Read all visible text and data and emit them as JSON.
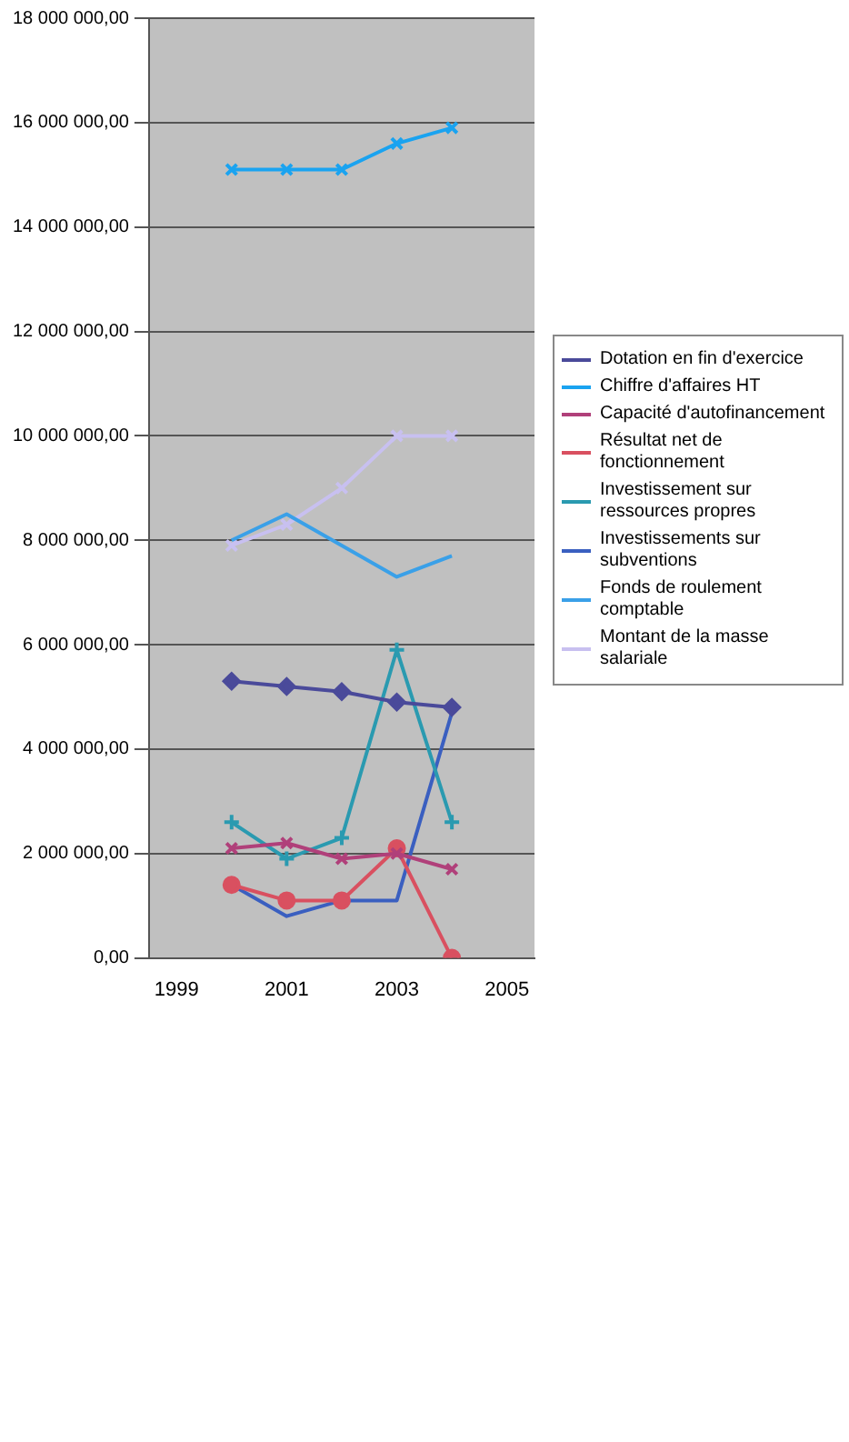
{
  "chart_data": {
    "type": "line",
    "categories": [
      "1999",
      null,
      "2001",
      null,
      "2003",
      null,
      "2005"
    ],
    "ylim": [
      0,
      18000000
    ],
    "yticks": [
      {
        "value": 0,
        "label": "0,00"
      },
      {
        "value": 2000000,
        "label": "2 000 000,00"
      },
      {
        "value": 4000000,
        "label": "4 000 000,00"
      },
      {
        "value": 6000000,
        "label": "6 000 000,00"
      },
      {
        "value": 8000000,
        "label": "8 000 000,00"
      },
      {
        "value": 10000000,
        "label": "10 000 000,00"
      },
      {
        "value": 12000000,
        "label": "12 000 000,00"
      },
      {
        "value": 14000000,
        "label": "14 000 000,00"
      },
      {
        "value": 16000000,
        "label": "16 000 000,00"
      },
      {
        "value": 18000000,
        "label": "18 000 000,00"
      }
    ],
    "grid": "y",
    "legend": "right",
    "series": [
      {
        "name": "Dotation en fin d'exercice",
        "color": "#4a4a9a",
        "marker": "diamond",
        "values": [
          null,
          5300000,
          5200000,
          5100000,
          4900000,
          4800000,
          null
        ]
      },
      {
        "name": "Chiffre d'affaires HT",
        "color": "#1aa3f0",
        "marker": "cross",
        "values": [
          null,
          15100000,
          15100000,
          15100000,
          15600000,
          15900000,
          null
        ]
      },
      {
        "name": "Capacité d'autofinancement",
        "color": "#b0407a",
        "marker": "cross",
        "values": [
          null,
          2100000,
          2200000,
          1900000,
          2000000,
          1700000,
          null
        ]
      },
      {
        "name": "Résultat net de fonctionnement",
        "color": "#d95060",
        "marker": "circle",
        "values": [
          null,
          1400000,
          1100000,
          1100000,
          2100000,
          0,
          null
        ]
      },
      {
        "name": "Investissement sur ressources propres",
        "color": "#2a9ab0",
        "marker": "plus",
        "values": [
          null,
          2600000,
          1900000,
          2300000,
          5900000,
          2600000,
          null
        ]
      },
      {
        "name": "Investissements sur subventions",
        "color": "#3a5fc0",
        "marker": "none",
        "values": [
          null,
          1400000,
          800000,
          1100000,
          1100000,
          4700000,
          null
        ]
      },
      {
        "name": "Fonds de roulement comptable",
        "color": "#3aa0e8",
        "marker": "none",
        "values": [
          null,
          8000000,
          8500000,
          7900000,
          7300000,
          7700000,
          null
        ]
      },
      {
        "name": "Montant de la masse salariale",
        "color": "#c8c0f0",
        "marker": "cross",
        "values": [
          null,
          7900000,
          8300000,
          9000000,
          10000000,
          10000000,
          null
        ]
      }
    ]
  }
}
